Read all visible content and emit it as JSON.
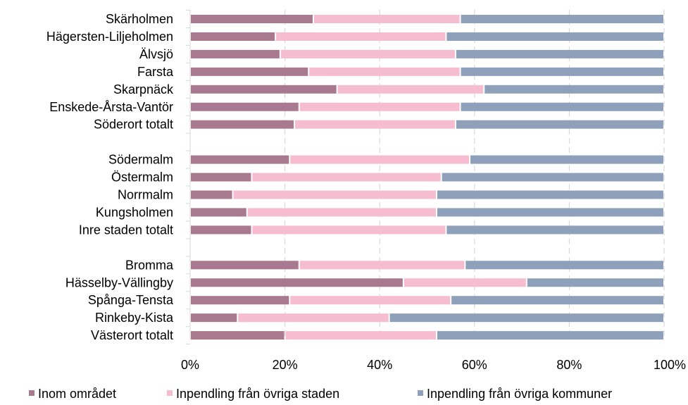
{
  "chart_data": {
    "type": "bar",
    "orientation": "horizontal",
    "stacked": "percent",
    "categories": [
      "Skärholmen",
      "Hägersten-Liljeholmen",
      "Älvsjö",
      "Farsta",
      "Skarpnäck",
      "Enskede-Årsta-Vantör",
      "Söderort totalt",
      "",
      "Södermalm",
      "Östermalm",
      "Norrmalm",
      "Kungsholmen",
      "Inre staden totalt",
      "",
      "Bromma",
      "Hässelby-Vällingby",
      "Spånga-Tensta",
      "Rinkeby-Kista",
      "Västerort totalt"
    ],
    "series": [
      {
        "name": "Inom området",
        "color": "#a8798f",
        "values": [
          26,
          18,
          19,
          25,
          31,
          23,
          22,
          null,
          21,
          13,
          9,
          12,
          13,
          null,
          23,
          45,
          21,
          10,
          20
        ]
      },
      {
        "name": "Inpendling från övriga staden",
        "color": "#f6bccf",
        "values": [
          31,
          36,
          37,
          32,
          31,
          34,
          34,
          null,
          38,
          40,
          43,
          40,
          41,
          null,
          35,
          26,
          34,
          32,
          32
        ]
      },
      {
        "name": "Inpendling från övriga kommuner",
        "color": "#8fa0ba",
        "values": [
          43,
          46,
          44,
          43,
          38,
          43,
          44,
          null,
          41,
          47,
          48,
          48,
          46,
          null,
          42,
          29,
          45,
          58,
          48
        ]
      }
    ],
    "xlim": [
      0,
      100
    ],
    "xticks": [
      "0%",
      "20%",
      "40%",
      "60%",
      "80%",
      "100%"
    ],
    "grid": true,
    "legend_position": "bottom"
  }
}
